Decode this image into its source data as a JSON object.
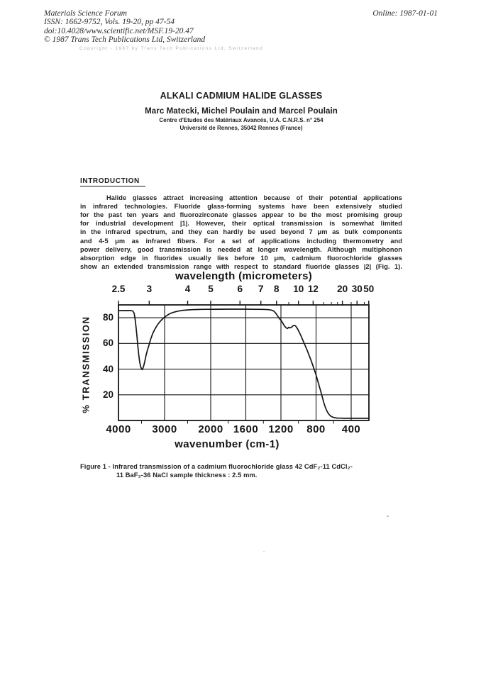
{
  "page": {
    "header": {
      "journal": "Materials Science Forum",
      "issn_line": "ISSN: 1662-9752, Vols. 19-20, pp 47-54",
      "doi_line": "doi:10.4028/www.scientific.net/MSF.19-20.47",
      "copyright_line": "© 1987 Trans Tech Publications Ltd, Switzerland",
      "online_date": "Online: 1987-01-01",
      "faint_copyright": "Copyright - 1987 by Trans Tech Publications Ltd, Switzerland"
    },
    "title_block": {
      "title": "ALKALI CADMIUM HALIDE GLASSES",
      "authors": "Marc Matecki, Michel Poulain and Marcel Poulain",
      "affiliation1": "Centre d'Etudes des Matériaux Avancés, U.A. C.N.R.S. n° 254",
      "affiliation2": "Université de Rennes, 35042 Rennes (France)"
    },
    "introduction": {
      "heading": "INTRODUCTION",
      "lines": [
        "Halide glasses attract increasing attention because of their potential applications",
        "in infrared technologies. Fluoride glass-forming systems have been extensively studied",
        "for the past ten years and fluorozirconate glasses appear to be the most promising group",
        "for industrial development |1|. However, their optical transmission is somewhat limited",
        "in the infrared spectrum, and they can hardly be used beyond 7 μm as bulk components",
        "and 4-5 μm as infrared fibers. For a set of applications including thermometry and",
        "power delivery, good transmission is needed at longer wavelength. Although multiphonon",
        "absorption edge in fluorides usually lies before 10 μm, cadmium fluorochloride glasses",
        "show an extended transmission range with respect to standard fluoride glasses |2| (Fig. 1)."
      ]
    },
    "caption": {
      "line1": "Figure 1 - Infrared transmission of a cadmium fluorochloride glass 42 CdF₂-11 CdCl₂-",
      "line2": "11 BaF₂-36 NaCl sample thickness : 2.5 mm."
    }
  },
  "chart_data": {
    "type": "line",
    "title_top": "wavelength  (micrometers)",
    "xlabel": "wavenumber  (cm-1)",
    "ylabel": "% TRANSMISSION",
    "grid": true,
    "x_axis_bottom": {
      "unit": "cm-1",
      "range": [
        4000,
        200
      ],
      "scale_note": "piecewise linear, scale change at 2000 cm-1 (right segment expanded ~2.5x)",
      "ticks": [
        4000,
        3000,
        2000,
        1600,
        1200,
        800,
        400
      ],
      "minor_ticks": [
        3500,
        2500,
        1800,
        1400,
        1000,
        600
      ]
    },
    "x_axis_top": {
      "unit": "micrometers",
      "ticks": [
        2.5,
        3,
        4,
        5,
        6,
        7,
        8,
        10,
        12,
        20,
        30,
        50
      ],
      "minor_ticks": [
        9,
        14,
        16,
        18,
        25,
        40
      ]
    },
    "y_axis": {
      "unit": "% transmission",
      "range": [
        0,
        90
      ],
      "ticks": [
        20,
        40,
        60,
        80
      ]
    },
    "series": [
      {
        "name": "42 CdF2 - 11 CdCl2 - 11 BaF2 - 36 NaCl glass, thickness 2.5 mm",
        "points": [
          [
            4000,
            85.5
          ],
          [
            3820,
            85.6
          ],
          [
            3720,
            85.5
          ],
          [
            3690,
            85.2
          ],
          [
            3660,
            83.5
          ],
          [
            3640,
            79
          ],
          [
            3620,
            73
          ],
          [
            3600,
            66
          ],
          [
            3580,
            58
          ],
          [
            3560,
            51
          ],
          [
            3540,
            45.5
          ],
          [
            3520,
            42
          ],
          [
            3500,
            40.2
          ],
          [
            3485,
            39.5
          ],
          [
            3470,
            40.5
          ],
          [
            3450,
            43
          ],
          [
            3430,
            46
          ],
          [
            3400,
            51
          ],
          [
            3370,
            55
          ],
          [
            3340,
            58.5
          ],
          [
            3300,
            63.5
          ],
          [
            3260,
            67.5
          ],
          [
            3220,
            70.5
          ],
          [
            3180,
            73
          ],
          [
            3140,
            75.2
          ],
          [
            3100,
            77
          ],
          [
            3050,
            78.9
          ],
          [
            3000,
            80.5
          ],
          [
            2950,
            81.8
          ],
          [
            2900,
            82.9
          ],
          [
            2850,
            83.7
          ],
          [
            2800,
            84.3
          ],
          [
            2750,
            84.8
          ],
          [
            2700,
            85.2
          ],
          [
            2600,
            85.8
          ],
          [
            2500,
            86.1
          ],
          [
            2400,
            86.3
          ],
          [
            2300,
            86.4
          ],
          [
            2200,
            86.5
          ],
          [
            2100,
            86.55
          ],
          [
            2000,
            86.6
          ],
          [
            1900,
            86.65
          ],
          [
            1800,
            86.7
          ],
          [
            1700,
            86.7
          ],
          [
            1600,
            86.7
          ],
          [
            1500,
            86.6
          ],
          [
            1400,
            86.5
          ],
          [
            1340,
            86.3
          ],
          [
            1300,
            85.8
          ],
          [
            1280,
            85.1
          ],
          [
            1260,
            83.6
          ],
          [
            1240,
            81.6
          ],
          [
            1220,
            79.6
          ],
          [
            1200,
            78
          ],
          [
            1180,
            76
          ],
          [
            1160,
            73.6
          ],
          [
            1140,
            72.1
          ],
          [
            1125,
            71.6
          ],
          [
            1110,
            72.6
          ],
          [
            1095,
            72.1
          ],
          [
            1080,
            72.6
          ],
          [
            1060,
            73.8
          ],
          [
            1045,
            74.1
          ],
          [
            1030,
            73.4
          ],
          [
            1010,
            71.2
          ],
          [
            990,
            68.6
          ],
          [
            970,
            65.6
          ],
          [
            950,
            62.5
          ],
          [
            925,
            58.5
          ],
          [
            900,
            54.5
          ],
          [
            875,
            50
          ],
          [
            850,
            45.5
          ],
          [
            825,
            40.5
          ],
          [
            800,
            35.5
          ],
          [
            775,
            29.5
          ],
          [
            750,
            23.5
          ],
          [
            730,
            18.5
          ],
          [
            710,
            13.5
          ],
          [
            690,
            9.5
          ],
          [
            670,
            6.5
          ],
          [
            650,
            4.6
          ],
          [
            630,
            3.3
          ],
          [
            610,
            2.6
          ],
          [
            590,
            2.2
          ],
          [
            560,
            1.9
          ],
          [
            520,
            1.8
          ],
          [
            480,
            1.7
          ],
          [
            440,
            1.7
          ],
          [
            400,
            1.7
          ],
          [
            350,
            1.7
          ],
          [
            300,
            1.7
          ],
          [
            250,
            1.7
          ],
          [
            200,
            1.7
          ]
        ]
      }
    ],
    "ink_color": "#161616"
  }
}
